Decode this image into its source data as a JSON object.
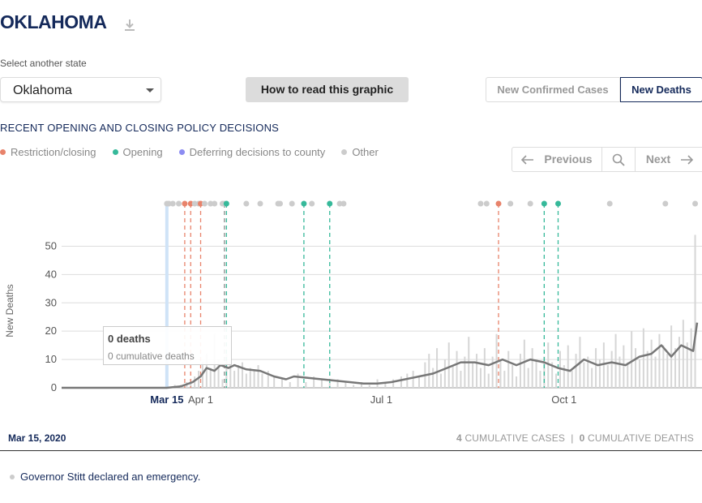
{
  "header": {
    "title": "OKLAHOMA"
  },
  "state_select": {
    "label": "Select another state",
    "value": "Oklahoma"
  },
  "how_button": "How to read this graphic",
  "metric_toggle": {
    "cases": "New Confirmed Cases",
    "deaths": "New Deaths"
  },
  "policy": {
    "title": "RECENT OPENING AND CLOSING POLICY DECISIONS",
    "legend": [
      {
        "label": "Restriction/closing",
        "color": "#e8836b"
      },
      {
        "label": "Opening",
        "color": "#36b99a"
      },
      {
        "label": "Deferring decisions to county",
        "color": "#8c8cf2"
      },
      {
        "label": "Other",
        "color": "#cccccc"
      }
    ]
  },
  "pager": {
    "previous": "Previous",
    "next": "Next"
  },
  "tooltip": {
    "value": "0 deaths",
    "cumulative": "0 cumulative deaths"
  },
  "footer": {
    "date": "Mar 15, 2020",
    "cases_count": "4",
    "cases_label": "CUMULATIVE CASES",
    "separator": "|",
    "deaths_count": "0",
    "deaths_label": "CUMULATIVE DEATHS"
  },
  "event_text": "Governor Stitt declared an emergency.",
  "chart_data": {
    "type": "bar",
    "title": "",
    "ylabel": "New Deaths",
    "ylim": [
      0,
      55
    ],
    "yticks": [
      0,
      10,
      20,
      30,
      40,
      50
    ],
    "x_range": [
      "2020-01-22",
      "2020-12-07"
    ],
    "xticks": [
      {
        "date": "2020-03-15",
        "label": "Mar 15",
        "selected": true
      },
      {
        "date": "2020-04-01",
        "label": "Apr 1"
      },
      {
        "date": "2020-07-01",
        "label": "Jul 1"
      },
      {
        "date": "2020-10-01",
        "label": "Oct 1"
      }
    ],
    "selected_date": "2020-03-15",
    "series": [
      {
        "name": "daily",
        "kind": "bars",
        "color": "#d6d6d6"
      },
      {
        "name": "7-day average",
        "kind": "line",
        "color": "#777777"
      }
    ],
    "daily_values": [
      [
        "2020-03-19",
        1
      ],
      [
        "2020-03-22",
        1
      ],
      [
        "2020-03-25",
        2
      ],
      [
        "2020-03-27",
        3
      ],
      [
        "2020-03-29",
        4
      ],
      [
        "2020-03-31",
        6
      ],
      [
        "2020-04-02",
        9
      ],
      [
        "2020-04-04",
        12
      ],
      [
        "2020-04-06",
        7
      ],
      [
        "2020-04-08",
        19
      ],
      [
        "2020-04-10",
        10
      ],
      [
        "2020-04-12",
        3
      ],
      [
        "2020-04-14",
        12
      ],
      [
        "2020-04-16",
        9
      ],
      [
        "2020-04-18",
        6
      ],
      [
        "2020-04-20",
        8
      ],
      [
        "2020-04-22",
        9
      ],
      [
        "2020-04-24",
        5
      ],
      [
        "2020-04-26",
        7
      ],
      [
        "2020-04-28",
        6
      ],
      [
        "2020-04-30",
        8
      ],
      [
        "2020-05-02",
        5
      ],
      [
        "2020-05-05",
        6
      ],
      [
        "2020-05-08",
        4
      ],
      [
        "2020-05-12",
        3
      ],
      [
        "2020-05-16",
        2
      ],
      [
        "2020-05-20",
        5
      ],
      [
        "2020-05-24",
        2
      ],
      [
        "2020-05-28",
        4
      ],
      [
        "2020-06-01",
        3
      ],
      [
        "2020-06-05",
        2
      ],
      [
        "2020-06-09",
        3
      ],
      [
        "2020-06-13",
        2
      ],
      [
        "2020-06-17",
        1
      ],
      [
        "2020-06-21",
        2
      ],
      [
        "2020-06-25",
        1
      ],
      [
        "2020-06-29",
        3
      ],
      [
        "2020-07-03",
        2
      ],
      [
        "2020-07-07",
        3
      ],
      [
        "2020-07-11",
        4
      ],
      [
        "2020-07-14",
        5
      ],
      [
        "2020-07-17",
        6
      ],
      [
        "2020-07-20",
        4
      ],
      [
        "2020-07-23",
        9
      ],
      [
        "2020-07-25",
        12
      ],
      [
        "2020-07-27",
        7
      ],
      [
        "2020-07-29",
        14
      ],
      [
        "2020-07-31",
        5
      ],
      [
        "2020-08-02",
        10
      ],
      [
        "2020-08-04",
        16
      ],
      [
        "2020-08-06",
        8
      ],
      [
        "2020-08-08",
        13
      ],
      [
        "2020-08-10",
        6
      ],
      [
        "2020-08-12",
        11
      ],
      [
        "2020-08-14",
        18
      ],
      [
        "2020-08-16",
        9
      ],
      [
        "2020-08-18",
        12
      ],
      [
        "2020-08-20",
        7
      ],
      [
        "2020-08-22",
        14
      ],
      [
        "2020-08-24",
        5
      ],
      [
        "2020-08-26",
        11
      ],
      [
        "2020-08-28",
        19
      ],
      [
        "2020-08-30",
        10
      ],
      [
        "2020-09-01",
        6
      ],
      [
        "2020-09-03",
        13
      ],
      [
        "2020-09-05",
        8
      ],
      [
        "2020-09-07",
        4
      ],
      [
        "2020-09-09",
        12
      ],
      [
        "2020-09-11",
        17
      ],
      [
        "2020-09-13",
        7
      ],
      [
        "2020-09-15",
        14
      ],
      [
        "2020-09-17",
        10
      ],
      [
        "2020-09-19",
        6
      ],
      [
        "2020-09-21",
        11
      ],
      [
        "2020-09-23",
        16
      ],
      [
        "2020-09-25",
        9
      ],
      [
        "2020-09-27",
        5
      ],
      [
        "2020-09-29",
        13
      ],
      [
        "2020-10-01",
        8
      ],
      [
        "2020-10-03",
        15
      ],
      [
        "2020-10-05",
        6
      ],
      [
        "2020-10-07",
        12
      ],
      [
        "2020-10-09",
        18
      ],
      [
        "2020-10-11",
        9
      ],
      [
        "2020-10-13",
        11
      ],
      [
        "2020-10-15",
        7
      ],
      [
        "2020-10-17",
        14
      ],
      [
        "2020-10-19",
        10
      ],
      [
        "2020-10-21",
        16
      ],
      [
        "2020-10-23",
        8
      ],
      [
        "2020-10-25",
        13
      ],
      [
        "2020-10-27",
        19
      ],
      [
        "2020-10-29",
        11
      ],
      [
        "2020-10-31",
        15
      ],
      [
        "2020-11-02",
        9
      ],
      [
        "2020-11-04",
        20
      ],
      [
        "2020-11-06",
        14
      ],
      [
        "2020-11-08",
        10
      ],
      [
        "2020-11-10",
        21
      ],
      [
        "2020-11-12",
        13
      ],
      [
        "2020-11-14",
        17
      ],
      [
        "2020-11-16",
        11
      ],
      [
        "2020-11-18",
        19
      ],
      [
        "2020-11-20",
        15
      ],
      [
        "2020-11-22",
        12
      ],
      [
        "2020-11-24",
        22
      ],
      [
        "2020-11-26",
        14
      ],
      [
        "2020-11-28",
        18
      ],
      [
        "2020-11-30",
        24
      ],
      [
        "2020-12-02",
        16
      ],
      [
        "2020-12-04",
        21
      ],
      [
        "2020-12-06",
        54
      ]
    ],
    "avg_line": [
      [
        "2020-01-22",
        0
      ],
      [
        "2020-03-15",
        0
      ],
      [
        "2020-03-22",
        0.5
      ],
      [
        "2020-03-28",
        2
      ],
      [
        "2020-04-01",
        4
      ],
      [
        "2020-04-04",
        7
      ],
      [
        "2020-04-08",
        6
      ],
      [
        "2020-04-11",
        8
      ],
      [
        "2020-04-15",
        7
      ],
      [
        "2020-04-18",
        8
      ],
      [
        "2020-04-24",
        6.5
      ],
      [
        "2020-05-01",
        6
      ],
      [
        "2020-05-08",
        4
      ],
      [
        "2020-05-14",
        3
      ],
      [
        "2020-05-18",
        4
      ],
      [
        "2020-05-25",
        3.5
      ],
      [
        "2020-06-01",
        3
      ],
      [
        "2020-06-08",
        2.5
      ],
      [
        "2020-06-15",
        2
      ],
      [
        "2020-06-22",
        1.5
      ],
      [
        "2020-06-29",
        1.5
      ],
      [
        "2020-07-06",
        2
      ],
      [
        "2020-07-13",
        3
      ],
      [
        "2020-07-20",
        4
      ],
      [
        "2020-07-27",
        5
      ],
      [
        "2020-08-03",
        7
      ],
      [
        "2020-08-10",
        9
      ],
      [
        "2020-08-17",
        9
      ],
      [
        "2020-08-24",
        8
      ],
      [
        "2020-08-31",
        10
      ],
      [
        "2020-09-07",
        8
      ],
      [
        "2020-09-14",
        10
      ],
      [
        "2020-09-21",
        9
      ],
      [
        "2020-09-28",
        7
      ],
      [
        "2020-10-04",
        6
      ],
      [
        "2020-10-11",
        10
      ],
      [
        "2020-10-18",
        8
      ],
      [
        "2020-10-25",
        9
      ],
      [
        "2020-11-01",
        8
      ],
      [
        "2020-11-08",
        11
      ],
      [
        "2020-11-14",
        12
      ],
      [
        "2020-11-19",
        15
      ],
      [
        "2020-11-24",
        11
      ],
      [
        "2020-11-29",
        15
      ],
      [
        "2020-12-02",
        14
      ],
      [
        "2020-12-05",
        13
      ],
      [
        "2020-12-07",
        23
      ]
    ],
    "policy_events": [
      {
        "date": "2020-03-15",
        "type": "other"
      },
      {
        "date": "2020-03-16",
        "type": "other"
      },
      {
        "date": "2020-03-18",
        "type": "other"
      },
      {
        "date": "2020-03-21",
        "type": "other"
      },
      {
        "date": "2020-03-24",
        "type": "restriction"
      },
      {
        "date": "2020-03-27",
        "type": "restriction"
      },
      {
        "date": "2020-03-29",
        "type": "other"
      },
      {
        "date": "2020-03-31",
        "type": "other"
      },
      {
        "date": "2020-04-01",
        "type": "restriction"
      },
      {
        "date": "2020-04-03",
        "type": "other"
      },
      {
        "date": "2020-04-06",
        "type": "other"
      },
      {
        "date": "2020-04-08",
        "type": "other"
      },
      {
        "date": "2020-04-12",
        "type": "other"
      },
      {
        "date": "2020-04-13",
        "type": "other"
      },
      {
        "date": "2020-04-14",
        "type": "opening"
      },
      {
        "date": "2020-04-24",
        "type": "other"
      },
      {
        "date": "2020-05-01",
        "type": "other"
      },
      {
        "date": "2020-05-10",
        "type": "other"
      },
      {
        "date": "2020-05-11",
        "type": "other"
      },
      {
        "date": "2020-05-17",
        "type": "other"
      },
      {
        "date": "2020-05-23",
        "type": "opening"
      },
      {
        "date": "2020-05-27",
        "type": "other"
      },
      {
        "date": "2020-06-05",
        "type": "opening"
      },
      {
        "date": "2020-06-10",
        "type": "other"
      },
      {
        "date": "2020-06-12",
        "type": "other"
      },
      {
        "date": "2020-08-20",
        "type": "other"
      },
      {
        "date": "2020-08-23",
        "type": "other"
      },
      {
        "date": "2020-08-29",
        "type": "restriction"
      },
      {
        "date": "2020-09-04",
        "type": "other"
      },
      {
        "date": "2020-09-14",
        "type": "other"
      },
      {
        "date": "2020-09-21",
        "type": "opening"
      },
      {
        "date": "2020-09-28",
        "type": "opening"
      },
      {
        "date": "2020-10-24",
        "type": "other"
      },
      {
        "date": "2020-11-21",
        "type": "other"
      },
      {
        "date": "2020-12-06",
        "type": "other"
      }
    ],
    "policy_lines": [
      {
        "date": "2020-03-24",
        "type": "restriction"
      },
      {
        "date": "2020-03-27",
        "type": "restriction"
      },
      {
        "date": "2020-04-01",
        "type": "restriction"
      },
      {
        "date": "2020-04-13",
        "type": "other"
      },
      {
        "date": "2020-04-14",
        "type": "opening"
      },
      {
        "date": "2020-05-23",
        "type": "opening"
      },
      {
        "date": "2020-06-05",
        "type": "opening"
      },
      {
        "date": "2020-08-29",
        "type": "restriction"
      },
      {
        "date": "2020-09-21",
        "type": "opening"
      },
      {
        "date": "2020-09-28",
        "type": "opening"
      }
    ]
  }
}
